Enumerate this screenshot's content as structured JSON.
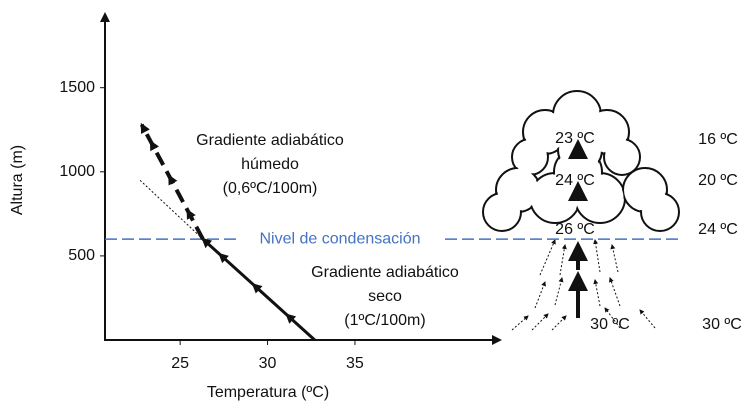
{
  "chart_data": {
    "type": "line",
    "xlabel": "Temperatura (ºC)",
    "ylabel": "Altura (m)",
    "xlim": [
      20.7,
      43.3
    ],
    "ylim": [
      0,
      1950
    ],
    "xticks": [
      25,
      30,
      35
    ],
    "yticks": [
      500,
      1000,
      1500
    ],
    "series": [
      {
        "color": "#111111",
        "width": 3,
        "dash": "none",
        "x": [
          32.7,
          26.3
        ],
        "values": [
          0,
          600
        ]
      },
      {
        "color": "#111111",
        "width": 4,
        "dash": "14 7",
        "x": [
          26.3,
          22.8
        ],
        "values": [
          600,
          1280
        ]
      },
      {
        "color": "#111111",
        "width": 1,
        "dash": "2 2",
        "x": [
          26.3,
          22.7
        ],
        "values": [
          600,
          950
        ]
      }
    ],
    "condensation_level": {
      "label": "Nivel de condensación",
      "value": 600,
      "color": "#4472c4"
    },
    "annotations": [
      {
        "lines": [
          "Gradiente adiabático",
          "húmedo",
          "(0,6ºC/100m)"
        ]
      },
      {
        "lines": [
          "Gradiente adiabático",
          "seco",
          "(1ºC/100m)"
        ]
      }
    ],
    "cloud": {
      "inner_labels": [
        "23 ºC",
        "24 ºC",
        "26 ºC",
        "30 ºC"
      ],
      "outer_labels": [
        "16 ºC",
        "20 ºC",
        "24 ºC",
        "30 ºC"
      ]
    }
  }
}
